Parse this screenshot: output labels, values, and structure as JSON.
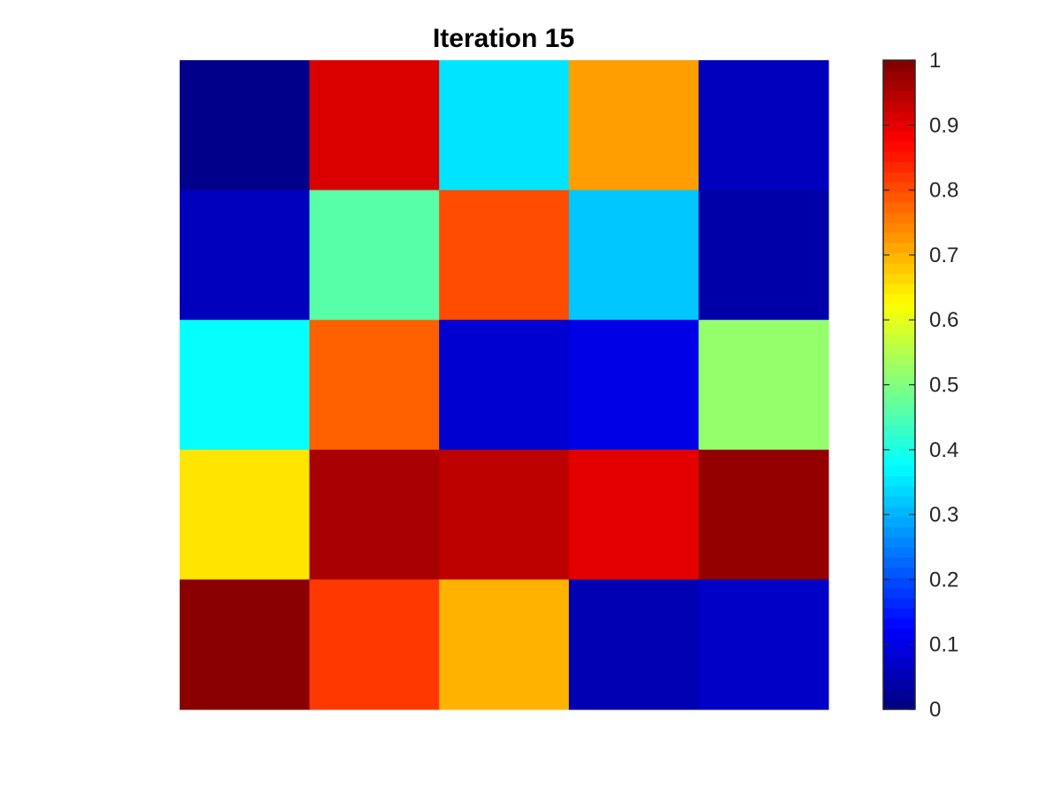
{
  "chart_data": {
    "type": "heatmap",
    "title": "Iteration 15",
    "xlabel": "",
    "ylabel": "",
    "grid": false,
    "colormap": "jet",
    "clim": [
      0,
      1
    ],
    "rows": 5,
    "cols": 5,
    "values": [
      [
        0.01,
        0.91,
        0.35,
        0.72,
        0.06
      ],
      [
        0.06,
        0.46,
        0.8,
        0.32,
        0.04
      ],
      [
        0.38,
        0.78,
        0.08,
        0.1,
        0.52
      ],
      [
        0.65,
        0.96,
        0.94,
        0.9,
        0.98
      ],
      [
        0.99,
        0.82,
        0.7,
        0.05,
        0.07
      ]
    ],
    "colorbar": {
      "placement": "right",
      "ticks": [
        0,
        0.1,
        0.2,
        0.3,
        0.4,
        0.5,
        0.6,
        0.7,
        0.8,
        0.9,
        1
      ],
      "tick_labels": [
        "0",
        "0.1",
        "0.2",
        "0.3",
        "0.4",
        "0.5",
        "0.6",
        "0.7",
        "0.8",
        "0.9",
        "1"
      ]
    }
  }
}
